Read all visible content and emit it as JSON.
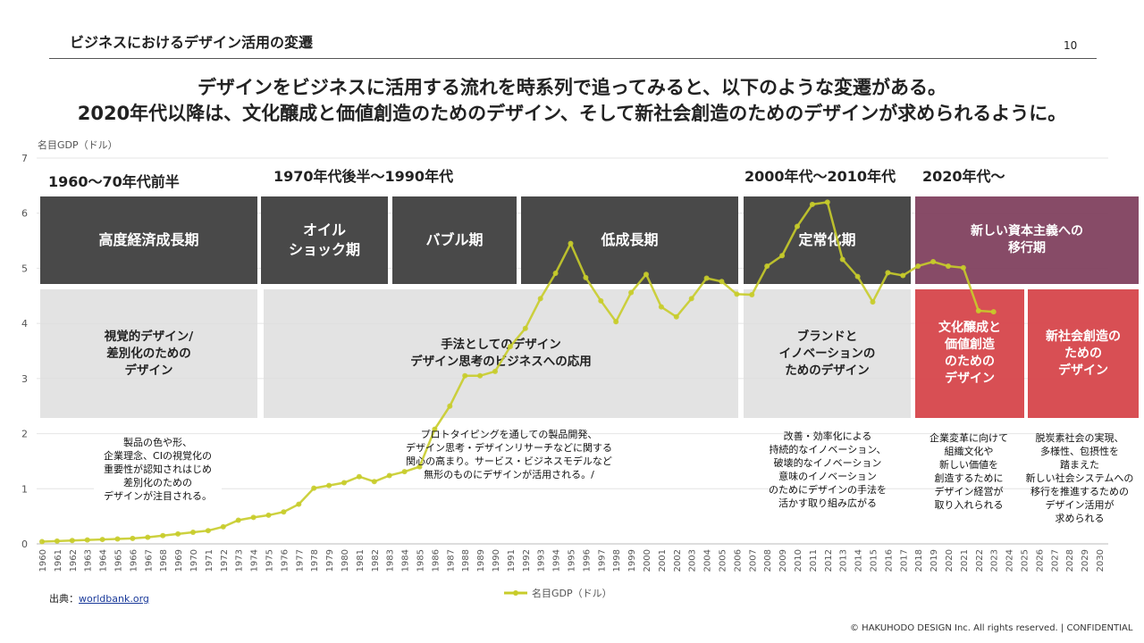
{
  "header": {
    "section_title": "ビジネスにおけるデザイン活用の変遷",
    "page_number": "10",
    "headline_line1": "デザインをビジネスに活用する流れを時系列で追ってみると、以下のような変遷がある。",
    "headline_line2": "2020年代以降は、文化醸成と価値創造のためのデザイン、そして新社会創造のためのデザインが求められるように。"
  },
  "eras": {
    "era1": "1960～70年代前半",
    "era2": "1970年代後半～1990年代",
    "era3": "2000年代～2010年代",
    "era4": "2020年代～"
  },
  "phases": {
    "p1": "高度経済成長期",
    "p2_line1": "オイル",
    "p2_line2": "ショック期",
    "p3": "バブル期",
    "p4": "低成長期",
    "p5": "定常化期",
    "p6_line1": "新しい資本主義への",
    "p6_line2": "移行期"
  },
  "design_roles": {
    "r1": [
      "視覚的デザイン/",
      "差別化のための",
      "デザイン"
    ],
    "r2": [
      "手法としてのデザイン",
      "デザイン思考のビジネスへの応用"
    ],
    "r3": [
      "ブランドと",
      "イノベーションの",
      "ためのデザイン"
    ],
    "r4": [
      "文化醸成と",
      "価値創造",
      "のための",
      "デザイン"
    ],
    "r5": [
      "新社会創造の",
      "ための",
      "デザイン"
    ]
  },
  "notes": {
    "n1": [
      "製品の色や形、",
      "企業理念、CIの視覚化の",
      "重要性が認知されはじめ",
      "差別化のための",
      "デザインが注目される。"
    ],
    "n2": [
      "プロトタイピングを通しての製品開発、",
      "デザイン思考・デザインリサーチなどに関する",
      "関心の高まり。サービス・ビジネスモデルなど",
      "無形のものにデザインが活用される。/"
    ],
    "n3": [
      "改善・効率化による",
      "持続的なイノベーション、",
      "破壊的なイノベーション",
      "意味のイノベーション",
      "のためにデザインの手法を",
      "活かす取り組み広がる"
    ],
    "n4": [
      "企業変革に向けて",
      "組織文化や",
      "新しい価値を",
      "創造するために",
      "デザイン経営が",
      "取り入れられる"
    ],
    "n5": [
      "脱炭素社会の実現、",
      "多様性、包摂性を",
      "踏まえた",
      "新しい社会システムへの",
      "移行を推進するための",
      "デザイン活用が",
      "求められる"
    ]
  },
  "source": {
    "label": "出典：",
    "link_text": "worldbank.org"
  },
  "footer": "© HAKUHODO DESIGN  Inc. All rights reserved. | CONFIDENTIAL",
  "colors": {
    "line": "#c8cc2a",
    "dark": "#494949",
    "purple": "#7d3c5a",
    "red": "#d6464b",
    "light": "#dedede"
  },
  "chart_data": {
    "type": "line",
    "title": "",
    "ylabel": "名目GDP（ドル）",
    "xlabel": "",
    "ylim": [
      0,
      7
    ],
    "yticks": [
      "0",
      "1",
      "2",
      "3",
      "4",
      "5",
      "6",
      "7"
    ],
    "xlim": [
      1960,
      2030
    ],
    "grid": true,
    "legend_position": "bottom",
    "series": [
      {
        "name": "名目GDP（ドル）",
        "x": [
          1960,
          1961,
          1962,
          1963,
          1964,
          1965,
          1966,
          1967,
          1968,
          1969,
          1970,
          1971,
          1972,
          1973,
          1974,
          1975,
          1976,
          1977,
          1978,
          1979,
          1980,
          1981,
          1982,
          1983,
          1984,
          1985,
          1986,
          1987,
          1988,
          1989,
          1990,
          1991,
          1992,
          1993,
          1994,
          1995,
          1996,
          1997,
          1998,
          1999,
          2000,
          2001,
          2002,
          2003,
          2004,
          2005,
          2006,
          2007,
          2008,
          2009,
          2010,
          2011,
          2012,
          2013,
          2014,
          2015,
          2016,
          2017,
          2018,
          2019,
          2020,
          2021,
          2022,
          2023
        ],
        "values": [
          0.04,
          0.05,
          0.06,
          0.07,
          0.08,
          0.09,
          0.1,
          0.12,
          0.15,
          0.18,
          0.21,
          0.24,
          0.31,
          0.43,
          0.48,
          0.52,
          0.58,
          0.72,
          1.01,
          1.06,
          1.11,
          1.22,
          1.13,
          1.24,
          1.31,
          1.4,
          2.08,
          2.5,
          3.05,
          3.05,
          3.13,
          3.58,
          3.91,
          4.45,
          4.91,
          5.45,
          4.83,
          4.41,
          4.03,
          4.56,
          4.89,
          4.3,
          4.12,
          4.45,
          4.82,
          4.76,
          4.53,
          4.52,
          5.04,
          5.23,
          5.76,
          6.16,
          6.2,
          5.16,
          4.85,
          4.39,
          4.92,
          4.87,
          5.04,
          5.12,
          5.04,
          5.01,
          4.23,
          4.21
        ]
      }
    ]
  }
}
